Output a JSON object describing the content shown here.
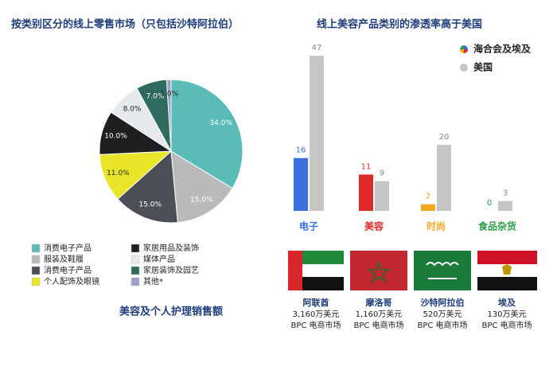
{
  "chart_data": [
    {
      "type": "pie",
      "title": "按类别区分的线上零售市场（只包括沙特阿拉伯）",
      "categories": [
        "消费电子产品",
        "服装及鞋履",
        "消费电子产品",
        "个人配饰及眼镜",
        "家居用品及装饰",
        "媒体产品",
        "家居装饰及园艺",
        "其他*"
      ],
      "values": [
        34,
        15,
        15,
        11,
        10,
        8,
        7,
        1
      ],
      "value_labels": [
        "34.0%",
        "15.0%",
        "15.0%",
        "11.0%",
        "10.0%",
        "8.0%",
        "7.0%",
        "1.0%"
      ],
      "colors": [
        "#5bbcb7",
        "#b9babb",
        "#4b5056",
        "#e8e52a",
        "#1f1f22",
        "#e6eaed",
        "#2f6a5f",
        "#9aa0c8"
      ],
      "subtitle": "美容及个人护理销售额"
    },
    {
      "type": "bar",
      "title": "线上美容产品类别的渗透率高于美国",
      "categories": [
        "电子",
        "美容",
        "时尚",
        "食品杂货"
      ],
      "series": [
        {
          "name": "海合会及埃及",
          "colors": [
            "#3a6fe0",
            "#e02a2a",
            "#f3a81f",
            "#2e9e4a"
          ],
          "values": [
            16,
            11,
            2,
            0
          ]
        },
        {
          "name": "美国",
          "color": "#c6c6c6",
          "values": [
            47,
            9,
            20,
            3
          ]
        }
      ],
      "legend": "top-right"
    }
  ],
  "markets": [
    {
      "name": "阿联酋",
      "amount": "3,160万美元",
      "note": "BPC 电商市场"
    },
    {
      "name": "摩洛哥",
      "amount": "1,160万美元",
      "note": "BPC 电商市场"
    },
    {
      "name": "沙特阿拉伯",
      "amount": "520万美元",
      "note": "BPC 电商市场"
    },
    {
      "name": "埃及",
      "amount": "130万美元",
      "note": "BPC 电商市场"
    }
  ]
}
